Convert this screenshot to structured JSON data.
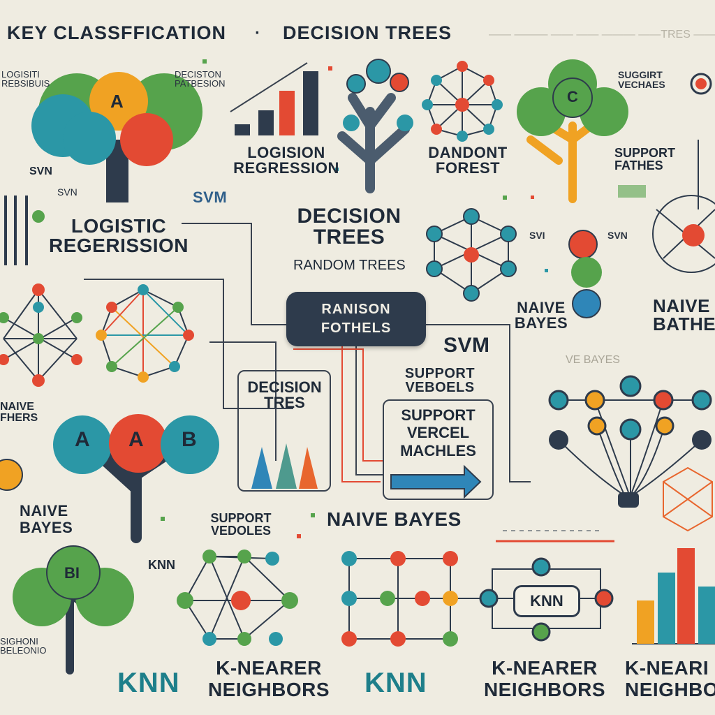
{
  "header": {
    "title_left": "KEY CLASSFFICATION",
    "separator": "·",
    "title_right": "DECISION TREES",
    "faded_text": "—— ——— —— —— ———  ——TRES  ———"
  },
  "center_node": {
    "line1": "RANISON",
    "line2": "FOTHELS"
  },
  "labels": {
    "logision_regression": "LOGISION REGRESSION",
    "dandont_forest": "DANDONT FOREST",
    "support_fathes": "SUPPORT FATHES",
    "logistic_regersion": "LOGISTIC REGERISSION",
    "decision_trees": "DECISION TREES",
    "random_trees": "RANDOM TREES",
    "svm_left": "SVN",
    "svm_left2": "SVN",
    "svm_box": "SVM",
    "svm_right": "SVM",
    "svi_a": "SVI",
    "svm_b": "SVN",
    "naive_bayes_a": "NAIVE BAYES",
    "naive_bathes": "NAIVE BATHES",
    "naive_fathers": "NAIVE FHERS",
    "naive_bayes_left": "NAIVE BAYES",
    "naive_bayes_center": "NAIVE BAYES",
    "support_vebels": "SUPPORT VEBOELS",
    "support_vercel_machles": "SUPPORT VERCEL MACHLES",
    "decision_tres_box": "DECISION TRES",
    "support_vedoles": "SUPPORT VEDOLES",
    "knn_small": "KNN",
    "knn_pill": "KNN",
    "knn_big_left": "KNN",
    "knn_big_center": "KNN",
    "k_nearer_neighbors_1": "K-NEARER NEIGHBORS",
    "k_nearer_neighbors_2": "K-NEARER NEIGHBORS",
    "k_nearer_neighbors_3": "K-NEARI NEIGHBO",
    "top_left_small": "LOGISITI REBSIBUIS",
    "decision_pateison_small": "DECISTON PATBESION",
    "suggest_vechaes_small": "SUGGIRT VECHAES",
    "vebayes_faded": "VE BAYES",
    "bottom_left_small": "SIGHONI BELEONIO"
  },
  "tree_letters": {
    "a_top": "A",
    "a_bottom": "A",
    "b_bottom": "B",
    "b_main": "A",
    "c_right": "C",
    "bi_bottom": "BI"
  },
  "colors": {
    "background": "#efece1",
    "navy": "#2e3b4c",
    "teal": "#2b97a6",
    "orange": "#f0a223",
    "red": "#e34a33",
    "green": "#56a34c",
    "blue": "#2f86b8"
  }
}
